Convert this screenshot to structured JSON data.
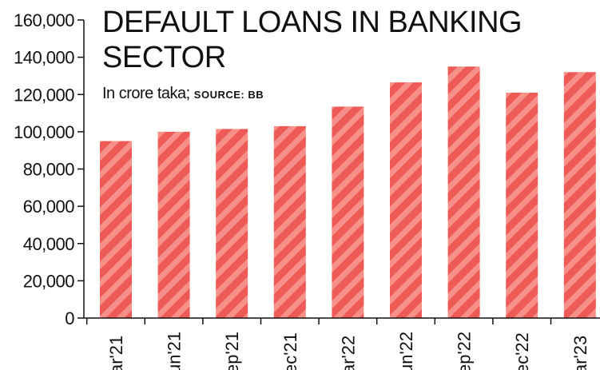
{
  "colors": {
    "bar": "#ee5a55",
    "stripe": "#f69088",
    "axis": "#111111",
    "text": "#111111"
  },
  "chart_data": {
    "type": "bar",
    "title": "DEFAULT LOANS IN BANKING SECTOR",
    "subtitle": "In crore taka;",
    "source": "SOURCE: BB",
    "categories": [
      "ar'21",
      "un'21",
      "ep'21",
      "ec'21",
      "ar'22",
      "un'22",
      "ep'22",
      "ec'22",
      "ar'23"
    ],
    "values": [
      95000,
      100000,
      101500,
      103000,
      113500,
      126500,
      135000,
      121000,
      132000
    ],
    "yticks": [
      0,
      20000,
      40000,
      60000,
      80000,
      100000,
      120000,
      140000,
      160000
    ],
    "ytick_labels": [
      "0",
      "20,000",
      "40,000",
      "60,000",
      "80,000",
      "100,000",
      "120,000",
      "140,000",
      "160,000"
    ],
    "ylim": [
      0,
      160000
    ],
    "grid": false
  }
}
